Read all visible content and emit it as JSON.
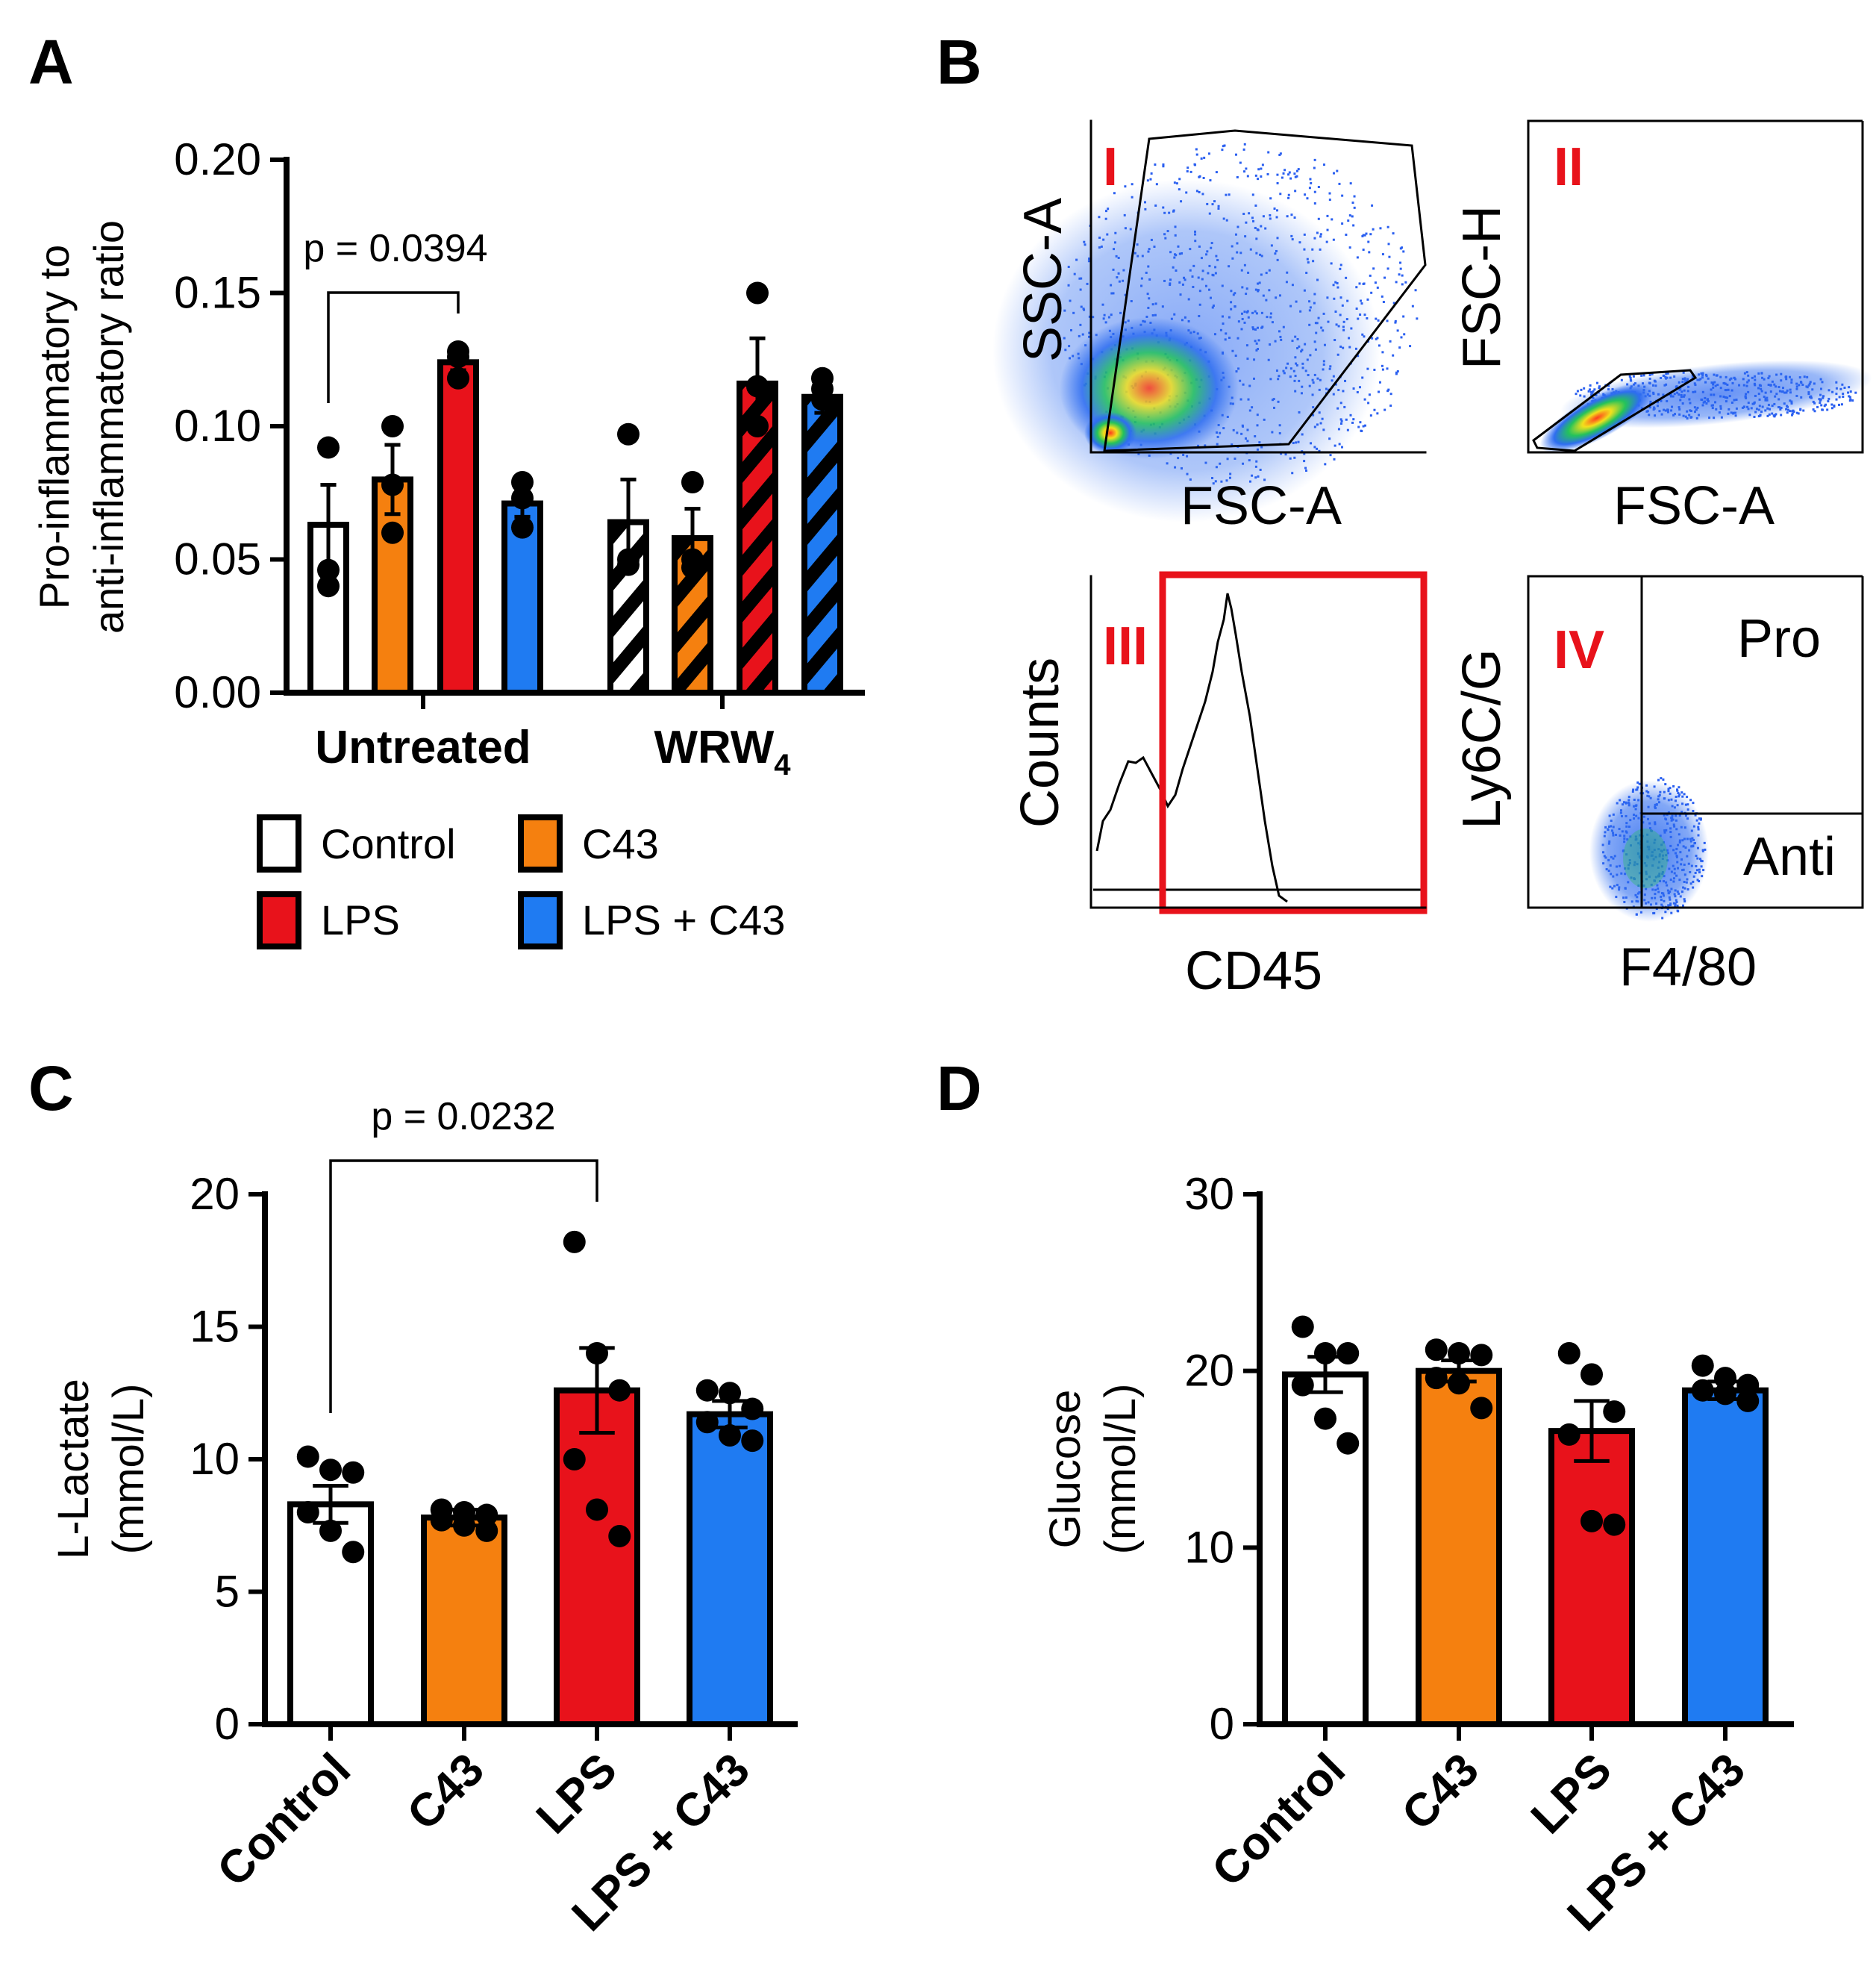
{
  "panels": {
    "A": {
      "letter": "A"
    },
    "B": {
      "letter": "B"
    },
    "C": {
      "letter": "C"
    },
    "D": {
      "letter": "D"
    }
  },
  "colors": {
    "Control": "#ffffff",
    "C43": "#f5800f",
    "LPS": "#e8121b",
    "LPS + C43": "#1f7bf2"
  },
  "chart_data": [
    {
      "id": "A",
      "type": "bar",
      "ylabel_line1": "Pro-inflammatory to",
      "ylabel_line2": "anti-inflammatory ratio",
      "ylim": [
        0,
        0.2
      ],
      "yticks": [
        "0.00",
        "0.05",
        "0.10",
        "0.15",
        "0.20"
      ],
      "ytick_values": [
        0,
        0.05,
        0.1,
        0.15,
        0.2
      ],
      "groups": [
        "Untreated",
        "WRW"
      ],
      "group_subscript": [
        "",
        "4"
      ],
      "series": [
        {
          "name": "Control",
          "values": [
            0.063,
            0.064
          ],
          "sem": [
            0.015,
            0.016
          ],
          "points": [
            [
              0.092,
              0.046,
              0.04
            ],
            [
              0.097,
              0.048,
              0.05
            ]
          ]
        },
        {
          "name": "C43",
          "values": [
            0.08,
            0.058
          ],
          "sem": [
            0.013,
            0.011
          ],
          "points": [
            [
              0.1,
              0.078,
              0.06
            ],
            [
              0.079,
              0.047,
              0.05
            ]
          ]
        },
        {
          "name": "LPS",
          "values": [
            0.124,
            0.116
          ],
          "sem": [
            0.003,
            0.017
          ],
          "points": [
            [
              0.128,
              0.126,
              0.118
            ],
            [
              0.15,
              0.115,
              0.1
            ]
          ]
        },
        {
          "name": "LPS + C43",
          "values": [
            0.071,
            0.111
          ],
          "sem": [
            0.005,
            0.006
          ],
          "points": [
            [
              0.079,
              0.073,
              0.062
            ],
            [
              0.118,
              0.114,
              0.11
            ]
          ]
        }
      ],
      "annotation": {
        "text": "p = 0.0394",
        "from": "Untreated/Control",
        "to": "Untreated/LPS"
      },
      "legend": [
        "Control",
        "C43",
        "LPS",
        "LPS + C43"
      ],
      "pattern": "WRW4 bars hatched diagonally"
    },
    {
      "id": "C",
      "type": "bar",
      "ylabel_line1": "L-Lactate",
      "ylabel_line2": "(mmol/L)",
      "ylim": [
        0,
        20
      ],
      "yticks": [
        "0",
        "5",
        "10",
        "15",
        "20"
      ],
      "ytick_values": [
        0,
        5,
        10,
        15,
        20
      ],
      "categories": [
        "Control",
        "C43",
        "LPS",
        "LPS + C43"
      ],
      "values": [
        8.3,
        7.8,
        12.6,
        11.7
      ],
      "sem": [
        0.7,
        0.3,
        1.6,
        0.5
      ],
      "points": [
        [
          10.1,
          9.6,
          9.5,
          8.0,
          7.3,
          6.5
        ],
        [
          8.1,
          8.0,
          7.9,
          7.7,
          7.5,
          7.3
        ],
        [
          18.2,
          14.0,
          12.6,
          10.0,
          8.1,
          7.1
        ],
        [
          12.6,
          12.5,
          11.9,
          11.4,
          10.9,
          10.7
        ]
      ],
      "annotation": {
        "text": "p = 0.0232",
        "from": "Control",
        "to": "LPS"
      }
    },
    {
      "id": "D",
      "type": "bar",
      "ylabel_line1": "Glucose",
      "ylabel_line2": "(mmol/L)",
      "ylim": [
        0,
        30
      ],
      "yticks": [
        "0",
        "10",
        "20",
        "30"
      ],
      "ytick_values": [
        0,
        10,
        20,
        30
      ],
      "categories": [
        "Control",
        "C43",
        "LPS",
        "LPS + C43"
      ],
      "values": [
        19.8,
        20.0,
        16.6,
        18.9
      ],
      "sem": [
        1.0,
        0.6,
        1.7,
        0.5
      ],
      "points": [
        [
          22.5,
          21.0,
          21.0,
          19.2,
          17.3,
          15.9
        ],
        [
          21.2,
          21.0,
          20.9,
          19.6,
          19.3,
          17.9
        ],
        [
          21.0,
          19.8,
          17.7,
          16.4,
          11.5,
          11.3
        ],
        [
          20.3,
          19.6,
          19.2,
          18.9,
          18.7,
          18.3
        ]
      ]
    },
    {
      "id": "B",
      "type": "flow-cytometry",
      "plots": [
        {
          "roman": "I",
          "xlabel": "FSC-A",
          "ylabel": "SSC-A"
        },
        {
          "roman": "II",
          "xlabel": "FSC-A",
          "ylabel": "FSC-H"
        },
        {
          "roman": "III",
          "xlabel": "CD45",
          "ylabel": "Counts"
        },
        {
          "roman": "IV",
          "xlabel": "F4/80",
          "ylabel": "Ly6C/G",
          "quadrants": [
            "Pro",
            "Anti"
          ]
        }
      ]
    }
  ]
}
